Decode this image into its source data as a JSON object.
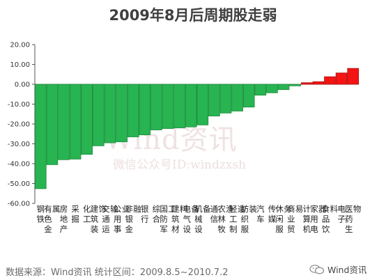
{
  "chart_data": {
    "type": "bar",
    "title": "2009年8月后周期股走弱",
    "ylim": [
      -60,
      20
    ],
    "yticks": [
      -60,
      -50,
      -40,
      -30,
      -20,
      -10,
      0,
      10,
      20
    ],
    "ytick_labels": [
      "-60.00",
      "-50.00",
      "-40.00",
      "-30.00",
      "-20.00",
      "-10.00",
      "0.00",
      "10.00",
      "20.00"
    ],
    "grid": false,
    "legend": "none",
    "colors": {
      "negative": "#27b451",
      "negative_edge": "#1f8a3d",
      "positive": "#f41414",
      "positive_edge": "#a80e0e"
    },
    "categories": [
      "钢铁",
      "有色金属",
      "房地产",
      "采掘",
      "化工",
      "建筑装饰",
      "交通运输",
      "公用事业",
      "非银金融",
      "银行",
      "综合",
      "国防军工",
      "建筑材料",
      "电气设备",
      "机械设备",
      "通信",
      "农林牧渔",
      "轻工制造",
      "纺织服装",
      "汽车",
      "传媒",
      "休闲服务",
      "商业贸易",
      "计算机",
      "家用电器",
      "食品饮料",
      "电子",
      "医药生物"
    ],
    "values": [
      -52.6,
      -40.5,
      -38.0,
      -37.7,
      -35.3,
      -31.0,
      -29.5,
      -29.0,
      -26.5,
      -25.5,
      -23.0,
      -22.3,
      -22.0,
      -21.5,
      -20.5,
      -16.0,
      -14.5,
      -13.5,
      -11.5,
      -5.5,
      -4.3,
      -2.7,
      -0.8,
      0.8,
      1.3,
      3.8,
      5.7,
      8.0
    ]
  },
  "footer": {
    "source": "数据来源：Wind资讯   统计区间：2009.8.5~2010.7.2",
    "brand": "Wind资讯",
    "brand_icon": "wechat-icon"
  },
  "watermark": {
    "main": "Wind资讯",
    "sub": "微信公众号ID:windzxsh"
  }
}
